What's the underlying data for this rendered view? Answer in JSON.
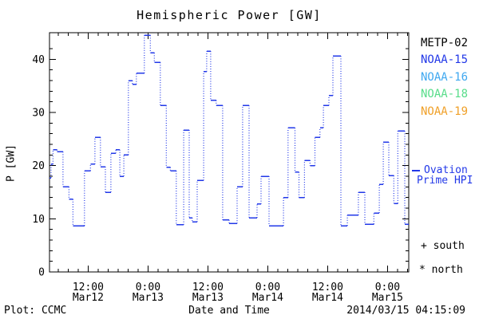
{
  "colors": {
    "background": "#ffffff",
    "axis": "#000000",
    "line": "#2238e8",
    "metp02": "#000000",
    "noaa15": "#2238e8",
    "noaa16": "#3fa8f0",
    "noaa18": "#58dd8a",
    "noaa19": "#f0a028"
  },
  "legend": {
    "satellites": [
      {
        "label": "METP-02",
        "color": "#000000"
      },
      {
        "label": "NOAA-15",
        "color": "#2238e8"
      },
      {
        "label": "NOAA-16",
        "color": "#3fa8f0"
      },
      {
        "label": "NOAA-18",
        "color": "#58dd8a"
      },
      {
        "label": "NOAA-19",
        "color": "#f0a028"
      }
    ],
    "ovation": {
      "line1": "Ovation",
      "line2": "Prime HPI",
      "color": "#2238e8"
    },
    "south_marker": "+ south",
    "north_marker": "* north"
  },
  "footer": {
    "left": "Plot: CCMC",
    "timestamp": "2014/03/15 04:15:09"
  },
  "chart_data": {
    "type": "line",
    "subtype": "stepped-dotted",
    "title": "Hemispheric Power [GW]",
    "xlabel": "Date and Time",
    "ylabel": "P [GW]",
    "ylim": [
      0,
      45
    ],
    "xlim_hours": [
      0,
      72
    ],
    "x_start": "2014/03/12 ~04:15 UT",
    "x_end": "2014/03/15 ~04:15 UT",
    "grid": "off",
    "legend_position": "right-outside",
    "y_major_ticks": [
      0,
      10,
      20,
      30,
      40
    ],
    "y_minor_step": 2,
    "x_minor_step_hours": 2,
    "x_minor_start_hour": 1.75,
    "x_major_ticks": [
      {
        "t": 7.75,
        "time": "12:00",
        "date": "Mar12"
      },
      {
        "t": 19.75,
        "time": "0:00",
        "date": "Mar13"
      },
      {
        "t": 31.75,
        "time": "12:00",
        "date": "Mar13"
      },
      {
        "t": 43.75,
        "time": "0:00",
        "date": "Mar14"
      },
      {
        "t": 55.75,
        "time": "12:00",
        "date": "Mar14"
      },
      {
        "t": 67.75,
        "time": "0:00",
        "date": "Mar15"
      }
    ],
    "series": [
      {
        "name": "Ovation Prime HPI",
        "units": "GW",
        "color": "#2238e8",
        "end_hour": 72,
        "points_t_gw": [
          [
            0.0,
            17.7
          ],
          [
            0.3,
            20.3
          ],
          [
            0.7,
            23.0
          ],
          [
            1.5,
            22.6
          ],
          [
            2.7,
            16.0
          ],
          [
            3.9,
            13.7
          ],
          [
            4.7,
            8.7
          ],
          [
            7.0,
            19.0
          ],
          [
            8.2,
            20.3
          ],
          [
            9.1,
            25.3
          ],
          [
            10.2,
            19.8
          ],
          [
            11.2,
            15.0
          ],
          [
            12.3,
            22.3
          ],
          [
            13.3,
            23.0
          ],
          [
            14.1,
            18.0
          ],
          [
            14.9,
            22.0
          ],
          [
            15.8,
            36.0
          ],
          [
            16.6,
            35.3
          ],
          [
            17.4,
            37.4
          ],
          [
            19.0,
            44.5
          ],
          [
            20.2,
            41.2
          ],
          [
            21.0,
            39.4
          ],
          [
            22.2,
            31.3
          ],
          [
            23.4,
            19.7
          ],
          [
            24.2,
            19.0
          ],
          [
            25.4,
            8.9
          ],
          [
            26.9,
            26.7
          ],
          [
            28.0,
            10.2
          ],
          [
            28.6,
            9.4
          ],
          [
            29.6,
            17.2
          ],
          [
            30.9,
            37.7
          ],
          [
            31.5,
            41.5
          ],
          [
            32.3,
            32.3
          ],
          [
            33.4,
            31.3
          ],
          [
            34.7,
            9.8
          ],
          [
            36.0,
            9.1
          ],
          [
            37.6,
            16.0
          ],
          [
            38.7,
            31.3
          ],
          [
            40.0,
            10.2
          ],
          [
            41.6,
            12.8
          ],
          [
            42.4,
            18.0
          ],
          [
            44.0,
            8.7
          ],
          [
            46.9,
            14.0
          ],
          [
            47.8,
            27.1
          ],
          [
            49.2,
            18.8
          ],
          [
            50.0,
            14.0
          ],
          [
            51.1,
            21.0
          ],
          [
            52.2,
            20.0
          ],
          [
            53.2,
            25.3
          ],
          [
            54.2,
            27.1
          ],
          [
            54.9,
            31.3
          ],
          [
            56.0,
            33.2
          ],
          [
            56.8,
            40.6
          ],
          [
            58.4,
            8.7
          ],
          [
            59.7,
            10.7
          ],
          [
            61.9,
            15.0
          ],
          [
            63.2,
            9.0
          ],
          [
            65.0,
            11.1
          ],
          [
            66.1,
            16.5
          ],
          [
            66.9,
            24.4
          ],
          [
            68.0,
            18.1
          ],
          [
            69.0,
            12.9
          ],
          [
            69.8,
            26.5
          ],
          [
            71.2,
            9.0
          ]
        ]
      }
    ]
  }
}
